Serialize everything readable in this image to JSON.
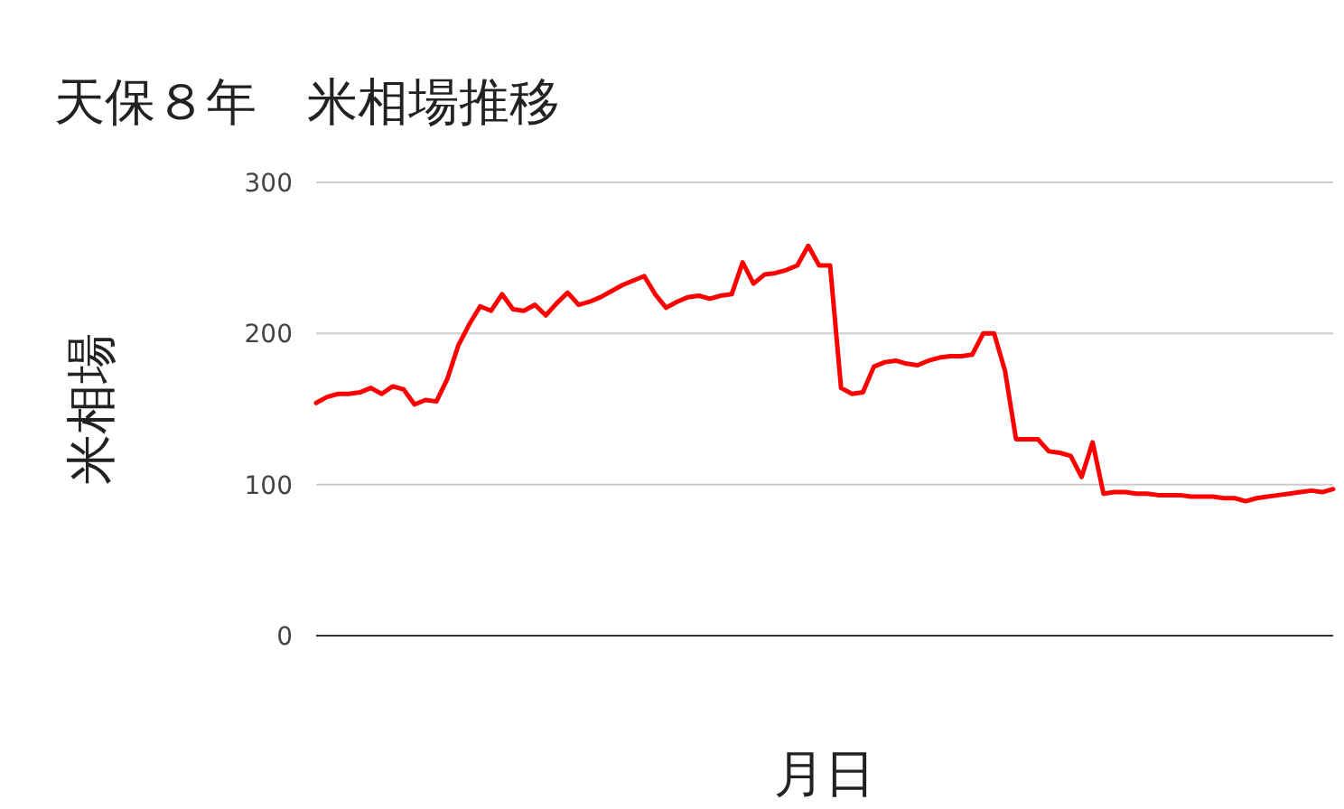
{
  "chart_data": {
    "type": "line",
    "title": "天保８年　米相場推移",
    "xlabel": "月日",
    "ylabel": "米相場",
    "categories": [
      null,
      null,
      null,
      null,
      null,
      null,
      null,
      null,
      null,
      null,
      null,
      null,
      null,
      null,
      null,
      null,
      null,
      null,
      null,
      null,
      null,
      null,
      null,
      null,
      null,
      null,
      null,
      null,
      null,
      null,
      null,
      null,
      null,
      null,
      null,
      null,
      null,
      null,
      null,
      null,
      null,
      null,
      null,
      null,
      null,
      null,
      null,
      null,
      null,
      null,
      null,
      null,
      null,
      null,
      null,
      null,
      null,
      null,
      null,
      null,
      null,
      null,
      null,
      null,
      null,
      null,
      null,
      null,
      null,
      null,
      null,
      null,
      null,
      null,
      null,
      null,
      null,
      null,
      null,
      null,
      null,
      null,
      null,
      null,
      null,
      null,
      null,
      null,
      null,
      null,
      null,
      null,
      null,
      null
    ],
    "series": [
      {
        "color": "#ff0000",
        "values": [
          154,
          158,
          160,
          160,
          161,
          164,
          160,
          165,
          163,
          153,
          156,
          155,
          170,
          192,
          206,
          218,
          215,
          226,
          216,
          215,
          219,
          212,
          220,
          227,
          219,
          221,
          224,
          228,
          232,
          235,
          238,
          226,
          217,
          221,
          224,
          225,
          223,
          225,
          226,
          247,
          233,
          239,
          240,
          242,
          245,
          258,
          245,
          245,
          164,
          160,
          161,
          178,
          181,
          182,
          180,
          179,
          182,
          184,
          185,
          185,
          186,
          200,
          200,
          175,
          130,
          130,
          130,
          122,
          121,
          119,
          105,
          128,
          94,
          95,
          95,
          94,
          94,
          93,
          93,
          93,
          92,
          92,
          92,
          91,
          91,
          89,
          91,
          92,
          93,
          94,
          95,
          96,
          95,
          97
        ]
      }
    ],
    "ylim": [
      0,
      300
    ],
    "yticks": [
      0,
      100,
      200,
      300
    ],
    "grid": "y",
    "marker": "none",
    "line_style": "solid"
  }
}
